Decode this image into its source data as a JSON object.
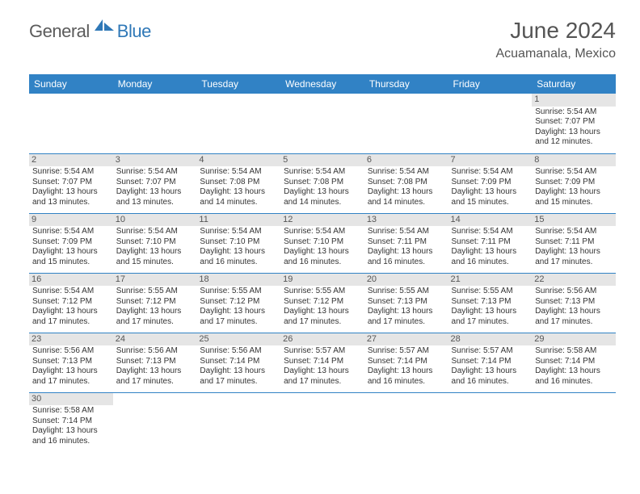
{
  "logo": {
    "text1": "General",
    "text2": "Blue"
  },
  "title": "June 2024",
  "location": "Acuamanala, Mexico",
  "colors": {
    "header_bg": "#3182c5",
    "header_text": "#ffffff",
    "day_header_bg": "#e5e5e5",
    "text": "#333333",
    "title_text": "#555555",
    "border": "#3182c5",
    "logo_gray": "#5b5b5b",
    "logo_blue": "#2f78b7"
  },
  "weekdays": [
    "Sunday",
    "Monday",
    "Tuesday",
    "Wednesday",
    "Thursday",
    "Friday",
    "Saturday"
  ],
  "weeks": [
    [
      {
        "blank": true
      },
      {
        "blank": true
      },
      {
        "blank": true
      },
      {
        "blank": true
      },
      {
        "blank": true
      },
      {
        "blank": true
      },
      {
        "day": "1",
        "sunrise": "Sunrise: 5:54 AM",
        "sunset": "Sunset: 7:07 PM",
        "daylight1": "Daylight: 13 hours",
        "daylight2": "and 12 minutes."
      }
    ],
    [
      {
        "day": "2",
        "sunrise": "Sunrise: 5:54 AM",
        "sunset": "Sunset: 7:07 PM",
        "daylight1": "Daylight: 13 hours",
        "daylight2": "and 13 minutes."
      },
      {
        "day": "3",
        "sunrise": "Sunrise: 5:54 AM",
        "sunset": "Sunset: 7:07 PM",
        "daylight1": "Daylight: 13 hours",
        "daylight2": "and 13 minutes."
      },
      {
        "day": "4",
        "sunrise": "Sunrise: 5:54 AM",
        "sunset": "Sunset: 7:08 PM",
        "daylight1": "Daylight: 13 hours",
        "daylight2": "and 14 minutes."
      },
      {
        "day": "5",
        "sunrise": "Sunrise: 5:54 AM",
        "sunset": "Sunset: 7:08 PM",
        "daylight1": "Daylight: 13 hours",
        "daylight2": "and 14 minutes."
      },
      {
        "day": "6",
        "sunrise": "Sunrise: 5:54 AM",
        "sunset": "Sunset: 7:08 PM",
        "daylight1": "Daylight: 13 hours",
        "daylight2": "and 14 minutes."
      },
      {
        "day": "7",
        "sunrise": "Sunrise: 5:54 AM",
        "sunset": "Sunset: 7:09 PM",
        "daylight1": "Daylight: 13 hours",
        "daylight2": "and 15 minutes."
      },
      {
        "day": "8",
        "sunrise": "Sunrise: 5:54 AM",
        "sunset": "Sunset: 7:09 PM",
        "daylight1": "Daylight: 13 hours",
        "daylight2": "and 15 minutes."
      }
    ],
    [
      {
        "day": "9",
        "sunrise": "Sunrise: 5:54 AM",
        "sunset": "Sunset: 7:09 PM",
        "daylight1": "Daylight: 13 hours",
        "daylight2": "and 15 minutes."
      },
      {
        "day": "10",
        "sunrise": "Sunrise: 5:54 AM",
        "sunset": "Sunset: 7:10 PM",
        "daylight1": "Daylight: 13 hours",
        "daylight2": "and 15 minutes."
      },
      {
        "day": "11",
        "sunrise": "Sunrise: 5:54 AM",
        "sunset": "Sunset: 7:10 PM",
        "daylight1": "Daylight: 13 hours",
        "daylight2": "and 16 minutes."
      },
      {
        "day": "12",
        "sunrise": "Sunrise: 5:54 AM",
        "sunset": "Sunset: 7:10 PM",
        "daylight1": "Daylight: 13 hours",
        "daylight2": "and 16 minutes."
      },
      {
        "day": "13",
        "sunrise": "Sunrise: 5:54 AM",
        "sunset": "Sunset: 7:11 PM",
        "daylight1": "Daylight: 13 hours",
        "daylight2": "and 16 minutes."
      },
      {
        "day": "14",
        "sunrise": "Sunrise: 5:54 AM",
        "sunset": "Sunset: 7:11 PM",
        "daylight1": "Daylight: 13 hours",
        "daylight2": "and 16 minutes."
      },
      {
        "day": "15",
        "sunrise": "Sunrise: 5:54 AM",
        "sunset": "Sunset: 7:11 PM",
        "daylight1": "Daylight: 13 hours",
        "daylight2": "and 17 minutes."
      }
    ],
    [
      {
        "day": "16",
        "sunrise": "Sunrise: 5:54 AM",
        "sunset": "Sunset: 7:12 PM",
        "daylight1": "Daylight: 13 hours",
        "daylight2": "and 17 minutes."
      },
      {
        "day": "17",
        "sunrise": "Sunrise: 5:55 AM",
        "sunset": "Sunset: 7:12 PM",
        "daylight1": "Daylight: 13 hours",
        "daylight2": "and 17 minutes."
      },
      {
        "day": "18",
        "sunrise": "Sunrise: 5:55 AM",
        "sunset": "Sunset: 7:12 PM",
        "daylight1": "Daylight: 13 hours",
        "daylight2": "and 17 minutes."
      },
      {
        "day": "19",
        "sunrise": "Sunrise: 5:55 AM",
        "sunset": "Sunset: 7:12 PM",
        "daylight1": "Daylight: 13 hours",
        "daylight2": "and 17 minutes."
      },
      {
        "day": "20",
        "sunrise": "Sunrise: 5:55 AM",
        "sunset": "Sunset: 7:13 PM",
        "daylight1": "Daylight: 13 hours",
        "daylight2": "and 17 minutes."
      },
      {
        "day": "21",
        "sunrise": "Sunrise: 5:55 AM",
        "sunset": "Sunset: 7:13 PM",
        "daylight1": "Daylight: 13 hours",
        "daylight2": "and 17 minutes."
      },
      {
        "day": "22",
        "sunrise": "Sunrise: 5:56 AM",
        "sunset": "Sunset: 7:13 PM",
        "daylight1": "Daylight: 13 hours",
        "daylight2": "and 17 minutes."
      }
    ],
    [
      {
        "day": "23",
        "sunrise": "Sunrise: 5:56 AM",
        "sunset": "Sunset: 7:13 PM",
        "daylight1": "Daylight: 13 hours",
        "daylight2": "and 17 minutes."
      },
      {
        "day": "24",
        "sunrise": "Sunrise: 5:56 AM",
        "sunset": "Sunset: 7:13 PM",
        "daylight1": "Daylight: 13 hours",
        "daylight2": "and 17 minutes."
      },
      {
        "day": "25",
        "sunrise": "Sunrise: 5:56 AM",
        "sunset": "Sunset: 7:14 PM",
        "daylight1": "Daylight: 13 hours",
        "daylight2": "and 17 minutes."
      },
      {
        "day": "26",
        "sunrise": "Sunrise: 5:57 AM",
        "sunset": "Sunset: 7:14 PM",
        "daylight1": "Daylight: 13 hours",
        "daylight2": "and 17 minutes."
      },
      {
        "day": "27",
        "sunrise": "Sunrise: 5:57 AM",
        "sunset": "Sunset: 7:14 PM",
        "daylight1": "Daylight: 13 hours",
        "daylight2": "and 16 minutes."
      },
      {
        "day": "28",
        "sunrise": "Sunrise: 5:57 AM",
        "sunset": "Sunset: 7:14 PM",
        "daylight1": "Daylight: 13 hours",
        "daylight2": "and 16 minutes."
      },
      {
        "day": "29",
        "sunrise": "Sunrise: 5:58 AM",
        "sunset": "Sunset: 7:14 PM",
        "daylight1": "Daylight: 13 hours",
        "daylight2": "and 16 minutes."
      }
    ],
    [
      {
        "day": "30",
        "sunrise": "Sunrise: 5:58 AM",
        "sunset": "Sunset: 7:14 PM",
        "daylight1": "Daylight: 13 hours",
        "daylight2": "and 16 minutes."
      },
      {
        "blank": true
      },
      {
        "blank": true
      },
      {
        "blank": true
      },
      {
        "blank": true
      },
      {
        "blank": true
      },
      {
        "blank": true
      }
    ]
  ]
}
